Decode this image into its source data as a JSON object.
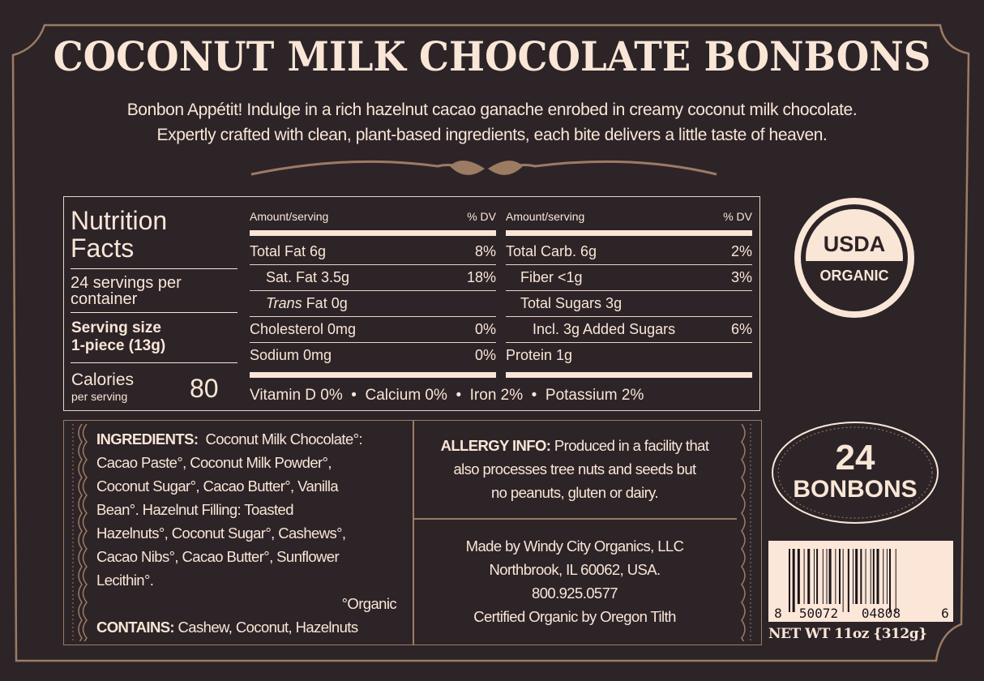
{
  "title": "COCONUT MILK CHOCOLATE BONBONS",
  "description": [
    "Bonbon Appétit! Indulge in a rich hazelnut cacao ganache enrobed in creamy coconut milk chocolate.",
    "Expertly crafted with clean, plant-based ingredients, each bite delivers a little taste of heaven."
  ],
  "nutrition": {
    "title": "Nutrition Facts",
    "servings": "24 servings per container",
    "serving_size_label": "Serving size",
    "serving_size": "1-piece (13g)",
    "calories_label": "Calories",
    "calories_sub": "per serving",
    "calories": "80",
    "header_amount": "Amount/serving",
    "header_dv": "% DV",
    "left_rows": [
      {
        "label": "Total Fat 6g",
        "dv": "8%"
      },
      {
        "label": "Sat. Fat 3.5g",
        "dv": "18%"
      },
      {
        "label": "Trans Fat 0g",
        "dv": ""
      },
      {
        "label": "Cholesterol 0mg",
        "dv": "0%"
      },
      {
        "label": "Sodium 0mg",
        "dv": "0%"
      }
    ],
    "right_rows": [
      {
        "label": "Total Carb. 6g",
        "dv": "2%"
      },
      {
        "label": "Fiber <1g",
        "dv": "3%"
      },
      {
        "label": "Total Sugars 3g",
        "dv": ""
      },
      {
        "label": "Incl. 3g Added Sugars",
        "dv": "6%"
      },
      {
        "label": "Protein 1g",
        "dv": ""
      }
    ],
    "vitamins": "Vitamin D 0%  •  Calcium 0%  •  Iron 2%  •  Potassium 2%"
  },
  "ingredients": {
    "label": "INGREDIENTS:",
    "lines": [
      "Coconut Milk Chocolate°:",
      "Cacao Paste°, Coconut Milk Powder°,",
      "Coconut Sugar°, Cacao Butter°, Vanilla",
      "Bean°.  Hazelnut Filling: Toasted",
      "Hazelnuts°, Coconut Sugar°, Cashews°,",
      "Cacao Nibs°, Cacao Butter°, Sunflower",
      "Lecithin°."
    ],
    "organic_note": "°Organic",
    "contains_label": "CONTAINS:",
    "contains": "Cashew, Coconut, Hazelnuts"
  },
  "allergy": {
    "label": "ALLERGY INFO:",
    "lines": [
      "Produced in a facility that",
      "also processes tree nuts and seeds but",
      "no peanuts, gluten or dairy."
    ]
  },
  "maker": [
    "Made by Windy City Organics, LLC",
    "Northbrook, IL 60062, USA.",
    "800.925.0577",
    "Certified Organic by Oregon Tilth"
  ],
  "usda": {
    "top": "USDA",
    "bottom": "ORGANIC"
  },
  "count": {
    "number": "24",
    "label": "BONBONS"
  },
  "barcode": {
    "digits": [
      "8",
      "50072",
      "04808",
      "6"
    ]
  },
  "net_wt": "NET WT 11oz {312g}",
  "colors": {
    "background": "#2d2428",
    "cream": "#f9e6d6",
    "border": "#9c7b63"
  }
}
